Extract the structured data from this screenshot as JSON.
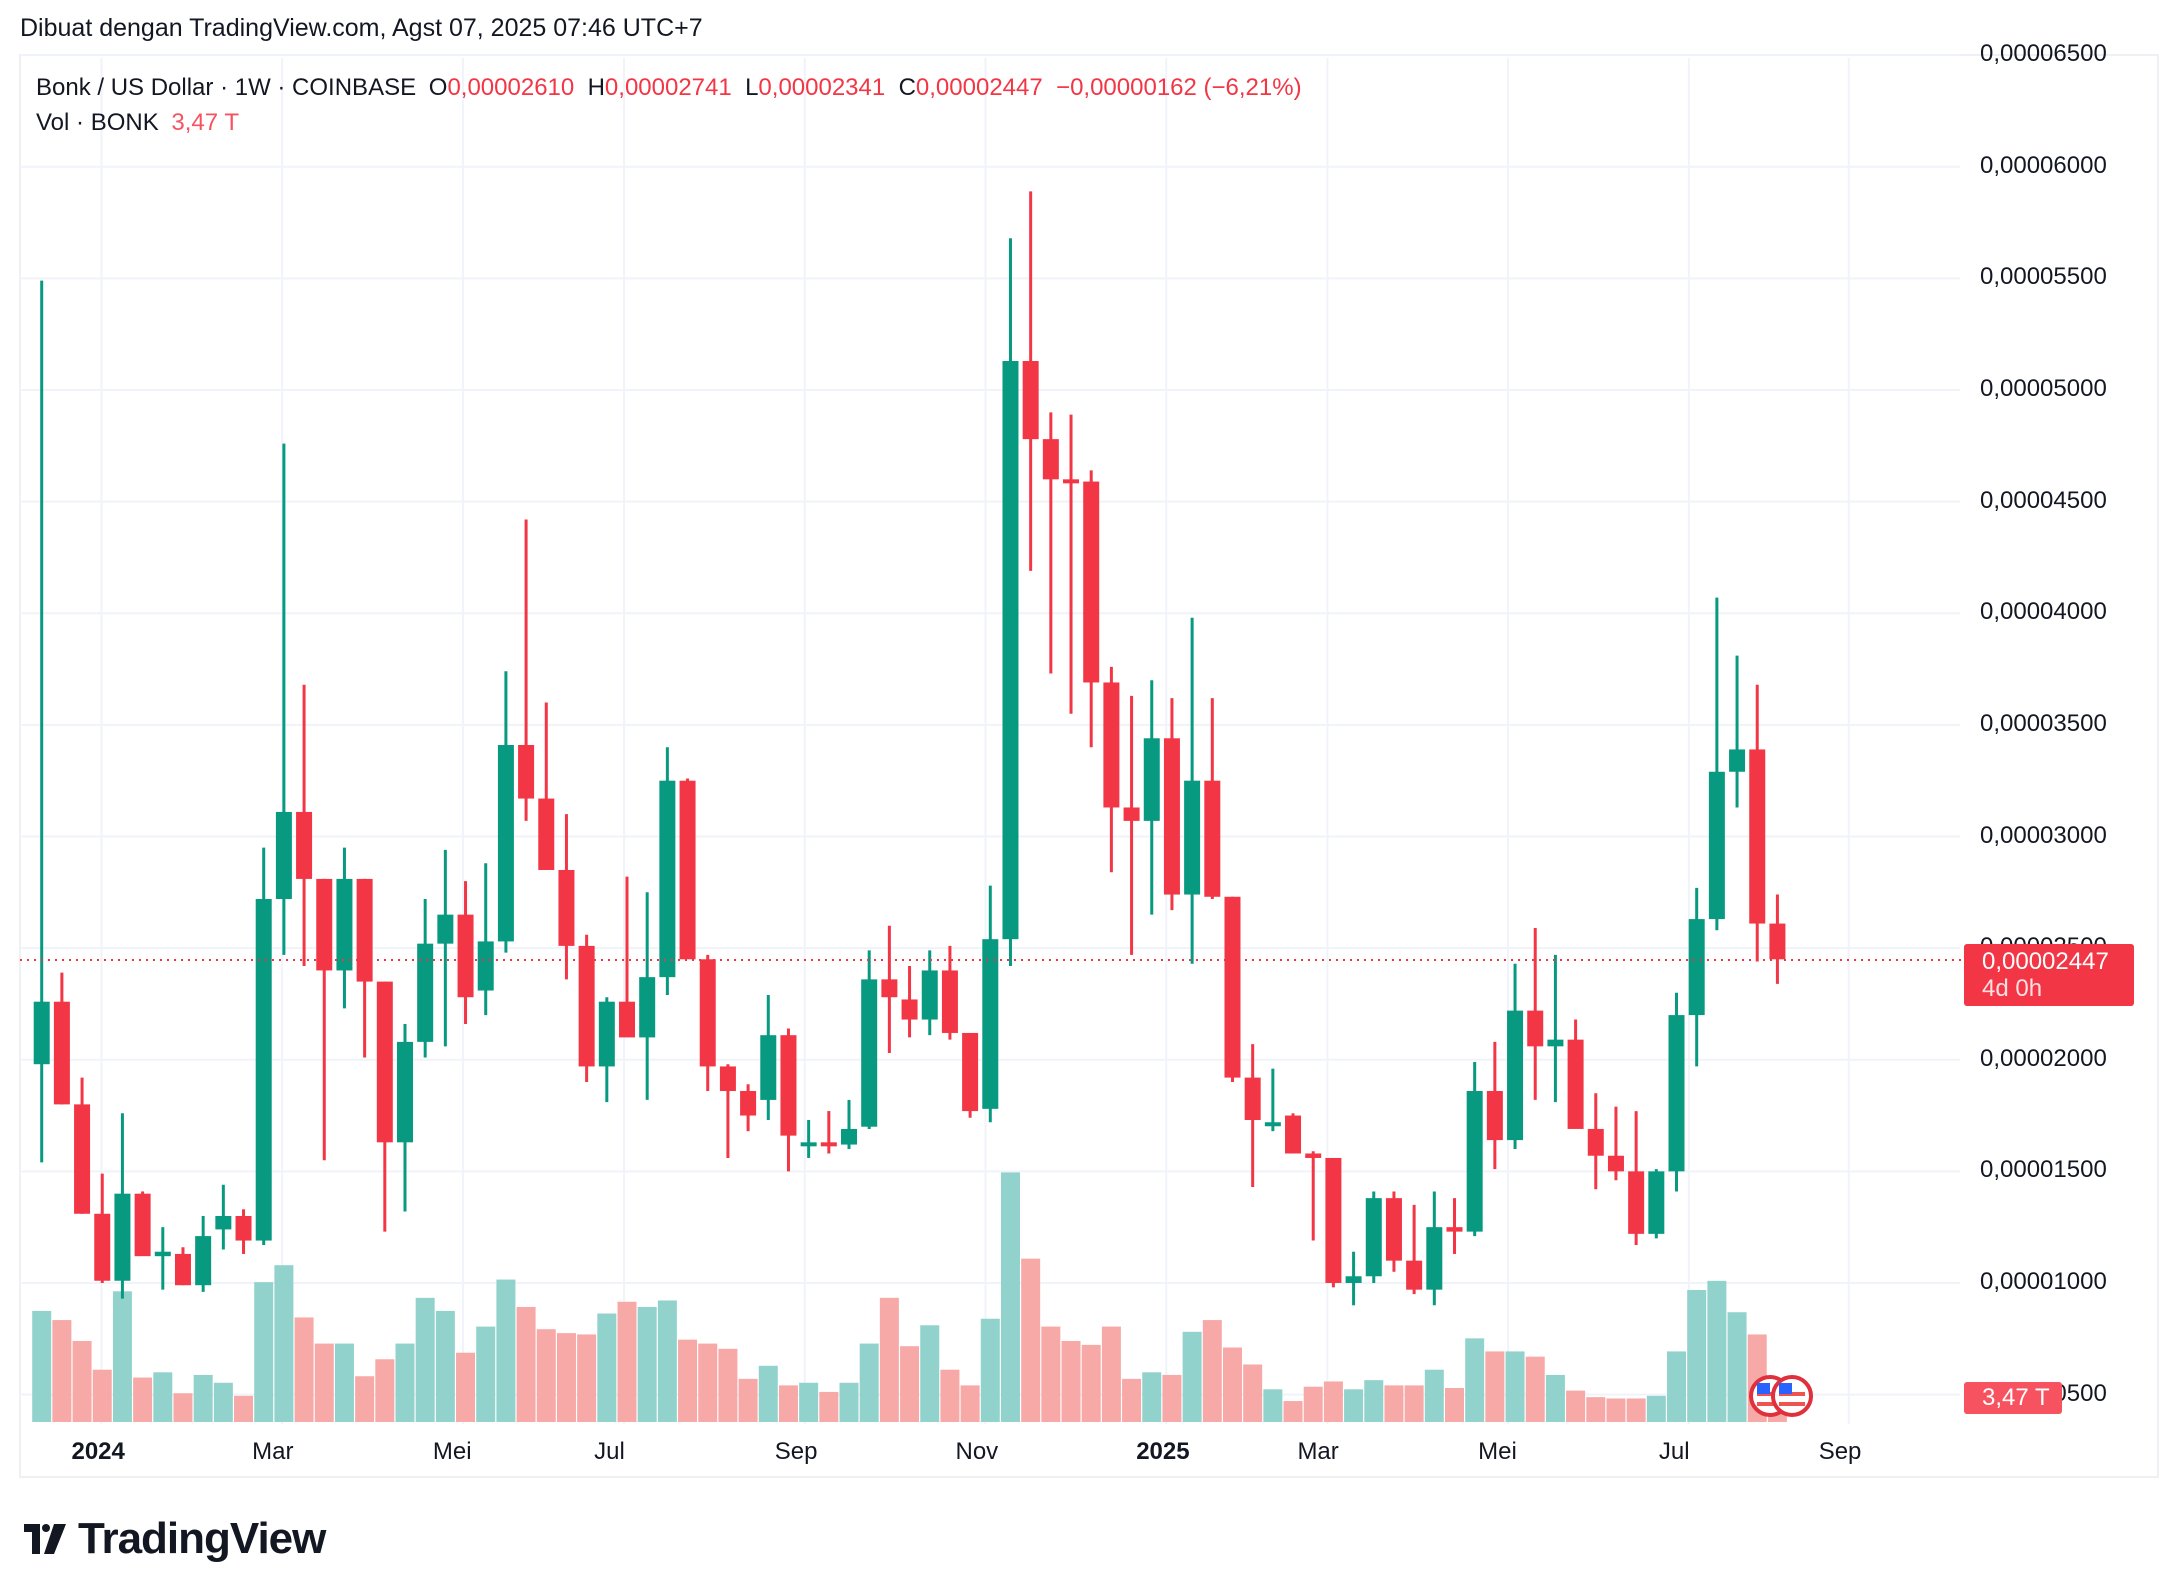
{
  "caption": "Dibuat dengan TradingView.com, Agst 07, 2025 07:46 UTC+7",
  "legend": {
    "symbol": "Bonk / US Dollar · 1W · COINBASE",
    "o_label": "O",
    "o_value": "0,00002610",
    "h_label": "H",
    "h_value": "0,00002741",
    "l_label": "L",
    "l_value": "0,00002341",
    "c_label": "C",
    "c_value": "0,00002447",
    "change": "−0,00000162 (−6,21%)",
    "vol_label": "Vol · BONK",
    "vol_value": "3,47 T"
  },
  "price_tag": {
    "value": "0,00002447",
    "countdown": "4d 0h"
  },
  "vol_tag": "3,47 T",
  "logo_text": "TradingView",
  "colors": {
    "up": "#089981",
    "down": "#f23645",
    "vol_up": "#92d2cc",
    "vol_down": "#f7a9a7",
    "grid": "#f0f3fa"
  },
  "chart_data": {
    "type": "candlestick",
    "title": "Bonk / US Dollar · 1W · COINBASE",
    "xlabel": "",
    "ylabel": "",
    "unit_note": "prices in units of 1e-5 USD",
    "y_ticks": [
      "0,00006500",
      "0,00006000",
      "0,00005500",
      "0,00005000",
      "0,00004500",
      "0,00004000",
      "0,00003500",
      "0,00003000",
      "0,00002500",
      "0,00002000",
      "0,00001500",
      "0,00001000",
      "0,00000500"
    ],
    "x_ticks": [
      "2024",
      "Mar",
      "Mei",
      "Jul",
      "Sep",
      "Nov",
      "2025",
      "Mar",
      "Mei",
      "Jul",
      "Sep"
    ],
    "ylim": [
      0.5,
      6.5
    ],
    "last_price": "0,00002447",
    "grid": true,
    "candles": [
      {
        "o": 1.98,
        "h": 5.49,
        "l": 1.54,
        "c": 2.26,
        "v": 0.85
      },
      {
        "o": 2.26,
        "h": 2.39,
        "l": 1.8,
        "c": 1.8,
        "v": 0.78
      },
      {
        "o": 1.8,
        "h": 1.92,
        "l": 1.31,
        "c": 1.31,
        "v": 0.62
      },
      {
        "o": 1.31,
        "h": 1.49,
        "l": 1.0,
        "c": 1.01,
        "v": 0.4
      },
      {
        "o": 1.01,
        "h": 1.76,
        "l": 0.93,
        "c": 1.4,
        "v": 1.0
      },
      {
        "o": 1.4,
        "h": 1.41,
        "l": 1.13,
        "c": 1.12,
        "v": 0.34
      },
      {
        "o": 1.12,
        "h": 1.25,
        "l": 0.97,
        "c": 1.14,
        "v": 0.38
      },
      {
        "o": 1.13,
        "h": 1.16,
        "l": 0.99,
        "c": 0.99,
        "v": 0.22
      },
      {
        "o": 0.99,
        "h": 1.3,
        "l": 0.96,
        "c": 1.21,
        "v": 0.36
      },
      {
        "o": 1.24,
        "h": 1.44,
        "l": 1.15,
        "c": 1.3,
        "v": 0.3
      },
      {
        "o": 1.3,
        "h": 1.33,
        "l": 1.13,
        "c": 1.19,
        "v": 0.2
      },
      {
        "o": 1.19,
        "h": 2.95,
        "l": 1.17,
        "c": 2.72,
        "v": 1.07
      },
      {
        "o": 2.72,
        "h": 4.76,
        "l": 2.47,
        "c": 3.11,
        "v": 1.2
      },
      {
        "o": 3.11,
        "h": 3.68,
        "l": 2.42,
        "c": 2.81,
        "v": 0.8
      },
      {
        "o": 2.81,
        "h": 2.81,
        "l": 1.55,
        "c": 2.4,
        "v": 0.6
      },
      {
        "o": 2.4,
        "h": 2.95,
        "l": 2.23,
        "c": 2.81,
        "v": 0.6
      },
      {
        "o": 2.81,
        "h": 2.81,
        "l": 2.01,
        "c": 2.35,
        "v": 0.35
      },
      {
        "o": 2.35,
        "h": 2.35,
        "l": 1.23,
        "c": 1.63,
        "v": 0.48
      },
      {
        "o": 1.63,
        "h": 2.16,
        "l": 1.32,
        "c": 2.08,
        "v": 0.6
      },
      {
        "o": 2.08,
        "h": 2.72,
        "l": 2.01,
        "c": 2.52,
        "v": 0.95
      },
      {
        "o": 2.52,
        "h": 2.94,
        "l": 2.06,
        "c": 2.65,
        "v": 0.85
      },
      {
        "o": 2.65,
        "h": 2.8,
        "l": 2.16,
        "c": 2.28,
        "v": 0.53
      },
      {
        "o": 2.31,
        "h": 2.88,
        "l": 2.2,
        "c": 2.53,
        "v": 0.73
      },
      {
        "o": 2.53,
        "h": 3.74,
        "l": 2.48,
        "c": 3.41,
        "v": 1.09
      },
      {
        "o": 3.41,
        "h": 4.42,
        "l": 3.07,
        "c": 3.17,
        "v": 0.88
      },
      {
        "o": 3.17,
        "h": 3.6,
        "l": 2.97,
        "c": 2.85,
        "v": 0.71
      },
      {
        "o": 2.85,
        "h": 3.1,
        "l": 2.36,
        "c": 2.51,
        "v": 0.68
      },
      {
        "o": 2.51,
        "h": 2.56,
        "l": 1.9,
        "c": 1.97,
        "v": 0.67
      },
      {
        "o": 1.97,
        "h": 2.28,
        "l": 1.81,
        "c": 2.26,
        "v": 0.83
      },
      {
        "o": 2.26,
        "h": 2.82,
        "l": 2.13,
        "c": 2.1,
        "v": 0.92
      },
      {
        "o": 2.1,
        "h": 2.75,
        "l": 1.82,
        "c": 2.37,
        "v": 0.88
      },
      {
        "o": 2.37,
        "h": 3.4,
        "l": 2.29,
        "c": 3.25,
        "v": 0.93
      },
      {
        "o": 3.25,
        "h": 3.26,
        "l": 2.48,
        "c": 2.45,
        "v": 0.63
      },
      {
        "o": 2.45,
        "h": 2.47,
        "l": 1.86,
        "c": 1.97,
        "v": 0.6
      },
      {
        "o": 1.97,
        "h": 1.98,
        "l": 1.56,
        "c": 1.86,
        "v": 0.56
      },
      {
        "o": 1.86,
        "h": 1.89,
        "l": 1.68,
        "c": 1.75,
        "v": 0.33
      },
      {
        "o": 1.82,
        "h": 2.29,
        "l": 1.73,
        "c": 2.11,
        "v": 0.43
      },
      {
        "o": 2.11,
        "h": 2.14,
        "l": 1.5,
        "c": 1.66,
        "v": 0.28
      },
      {
        "o": 1.63,
        "h": 1.73,
        "l": 1.56,
        "c": 1.63,
        "v": 0.3
      },
      {
        "o": 1.63,
        "h": 1.77,
        "l": 1.58,
        "c": 1.62,
        "v": 0.23
      },
      {
        "o": 1.62,
        "h": 1.82,
        "l": 1.6,
        "c": 1.69,
        "v": 0.3
      },
      {
        "o": 1.7,
        "h": 2.49,
        "l": 1.69,
        "c": 2.36,
        "v": 0.6
      },
      {
        "o": 2.36,
        "h": 2.6,
        "l": 2.03,
        "c": 2.28,
        "v": 0.95
      },
      {
        "o": 2.27,
        "h": 2.42,
        "l": 2.1,
        "c": 2.18,
        "v": 0.58
      },
      {
        "o": 2.18,
        "h": 2.49,
        "l": 2.11,
        "c": 2.4,
        "v": 0.74
      },
      {
        "o": 2.4,
        "h": 2.51,
        "l": 2.09,
        "c": 2.12,
        "v": 0.4
      },
      {
        "o": 2.12,
        "h": 2.1,
        "l": 1.74,
        "c": 1.77,
        "v": 0.28
      },
      {
        "o": 1.78,
        "h": 2.78,
        "l": 1.72,
        "c": 2.54,
        "v": 0.79
      },
      {
        "o": 2.54,
        "h": 5.68,
        "l": 2.42,
        "c": 5.13,
        "v": 1.91
      },
      {
        "o": 5.13,
        "h": 5.89,
        "l": 4.19,
        "c": 4.78,
        "v": 1.25
      },
      {
        "o": 4.78,
        "h": 4.9,
        "l": 3.73,
        "c": 4.6,
        "v": 0.73
      },
      {
        "o": 4.6,
        "h": 4.89,
        "l": 3.55,
        "c": 4.59,
        "v": 0.62
      },
      {
        "o": 4.59,
        "h": 4.64,
        "l": 3.4,
        "c": 3.69,
        "v": 0.59
      },
      {
        "o": 3.69,
        "h": 3.76,
        "l": 2.84,
        "c": 3.13,
        "v": 0.73
      },
      {
        "o": 3.13,
        "h": 3.63,
        "l": 2.47,
        "c": 3.07,
        "v": 0.33
      },
      {
        "o": 3.07,
        "h": 3.7,
        "l": 2.65,
        "c": 3.44,
        "v": 0.38
      },
      {
        "o": 3.44,
        "h": 3.62,
        "l": 2.67,
        "c": 2.74,
        "v": 0.36
      },
      {
        "o": 2.74,
        "h": 3.98,
        "l": 2.43,
        "c": 3.25,
        "v": 0.69
      },
      {
        "o": 3.25,
        "h": 3.62,
        "l": 2.72,
        "c": 2.73,
        "v": 0.78
      },
      {
        "o": 2.73,
        "h": 2.73,
        "l": 1.9,
        "c": 1.92,
        "v": 0.57
      },
      {
        "o": 1.92,
        "h": 2.07,
        "l": 1.43,
        "c": 1.73,
        "v": 0.44
      },
      {
        "o": 1.71,
        "h": 1.96,
        "l": 1.68,
        "c": 1.72,
        "v": 0.25
      },
      {
        "o": 1.75,
        "h": 1.76,
        "l": 1.58,
        "c": 1.58,
        "v": 0.16
      },
      {
        "o": 1.58,
        "h": 1.59,
        "l": 1.19,
        "c": 1.56,
        "v": 0.27
      },
      {
        "o": 1.56,
        "h": 1.55,
        "l": 0.98,
        "c": 1.0,
        "v": 0.31
      },
      {
        "o": 1.0,
        "h": 1.14,
        "l": 0.9,
        "c": 1.03,
        "v": 0.25
      },
      {
        "o": 1.03,
        "h": 1.41,
        "l": 1.0,
        "c": 1.38,
        "v": 0.32
      },
      {
        "o": 1.38,
        "h": 1.41,
        "l": 1.05,
        "c": 1.1,
        "v": 0.28
      },
      {
        "o": 1.1,
        "h": 1.35,
        "l": 0.95,
        "c": 0.97,
        "v": 0.28
      },
      {
        "o": 0.97,
        "h": 1.41,
        "l": 0.9,
        "c": 1.25,
        "v": 0.4
      },
      {
        "o": 1.25,
        "h": 1.38,
        "l": 1.13,
        "c": 1.23,
        "v": 0.26
      },
      {
        "o": 1.23,
        "h": 1.99,
        "l": 1.21,
        "c": 1.86,
        "v": 0.64
      },
      {
        "o": 1.86,
        "h": 2.08,
        "l": 1.51,
        "c": 1.64,
        "v": 0.54
      },
      {
        "o": 1.64,
        "h": 2.43,
        "l": 1.6,
        "c": 2.22,
        "v": 0.54
      },
      {
        "o": 2.22,
        "h": 2.59,
        "l": 1.82,
        "c": 2.06,
        "v": 0.5
      },
      {
        "o": 2.06,
        "h": 2.47,
        "l": 1.81,
        "c": 2.09,
        "v": 0.36
      },
      {
        "o": 2.09,
        "h": 2.18,
        "l": 1.71,
        "c": 1.69,
        "v": 0.24
      },
      {
        "o": 1.69,
        "h": 1.85,
        "l": 1.42,
        "c": 1.57,
        "v": 0.19
      },
      {
        "o": 1.57,
        "h": 1.79,
        "l": 1.46,
        "c": 1.5,
        "v": 0.18
      },
      {
        "o": 1.5,
        "h": 1.77,
        "l": 1.17,
        "c": 1.22,
        "v": 0.18
      },
      {
        "o": 1.22,
        "h": 1.51,
        "l": 1.2,
        "c": 1.5,
        "v": 0.2
      },
      {
        "o": 1.5,
        "h": 2.3,
        "l": 1.41,
        "c": 2.2,
        "v": 0.54
      },
      {
        "o": 2.2,
        "h": 2.77,
        "l": 1.97,
        "c": 2.63,
        "v": 1.01
      },
      {
        "o": 2.63,
        "h": 4.07,
        "l": 2.58,
        "c": 3.29,
        "v": 1.08
      },
      {
        "o": 3.29,
        "h": 3.81,
        "l": 3.13,
        "c": 3.39,
        "v": 0.84
      },
      {
        "o": 3.39,
        "h": 3.68,
        "l": 2.44,
        "c": 2.61,
        "v": 0.67
      },
      {
        "o": 2.61,
        "h": 2.74,
        "l": 2.34,
        "c": 2.45,
        "v": 0.3
      }
    ]
  }
}
